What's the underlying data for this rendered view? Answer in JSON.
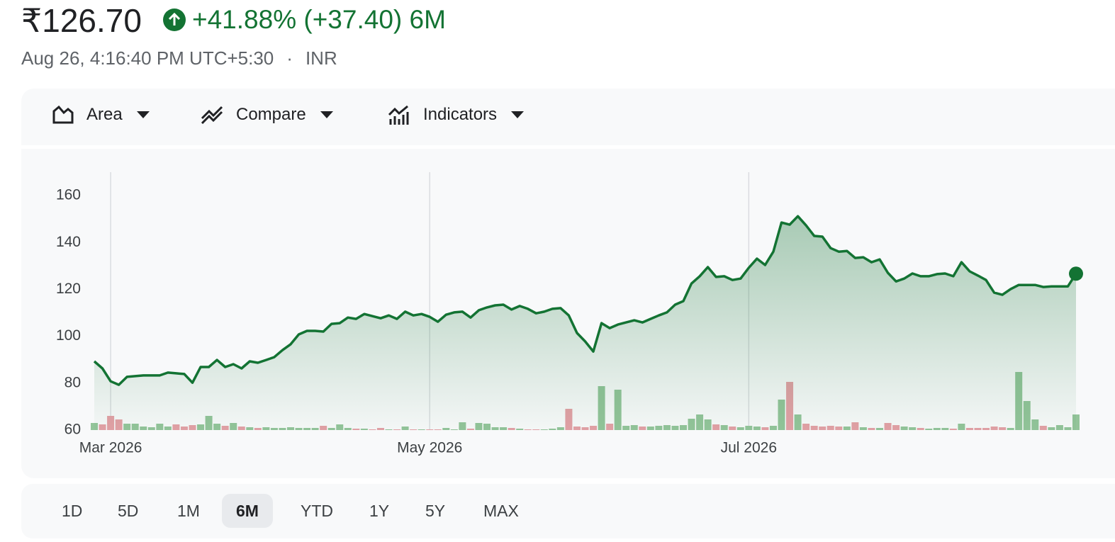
{
  "header": {
    "price": "₹126.70",
    "change": "+41.88% (+37.40) 6M",
    "timestamp": "Aug 26, 4:16:40 PM UTC+5:30",
    "separator": "·",
    "currency": "INR"
  },
  "toolbar": [
    "Area",
    "Compare",
    "Indicators"
  ],
  "ranges": [
    "1D",
    "5D",
    "1M",
    "6M",
    "YTD",
    "1Y",
    "5Y",
    "MAX"
  ],
  "selected_range": "6M",
  "chart_data": {
    "type": "area",
    "color": "#137333",
    "up_color": "#93c49a",
    "down_color": "#e3a0a6",
    "grid": "x",
    "ylim": [
      60,
      170
    ],
    "yticks": [
      60,
      80,
      100,
      120,
      140,
      160
    ],
    "categories": [
      null,
      null,
      "Mar 2026",
      null,
      null,
      null,
      null,
      null,
      null,
      null,
      null,
      null,
      null,
      null,
      null,
      null,
      null,
      null,
      null,
      null,
      null,
      null,
      null,
      null,
      null,
      null,
      null,
      null,
      null,
      null,
      null,
      null,
      null,
      null,
      null,
      null,
      null,
      null,
      null,
      null,
      null,
      "May 2026",
      null,
      null,
      null,
      null,
      null,
      null,
      null,
      null,
      null,
      null,
      null,
      null,
      null,
      null,
      null,
      null,
      null,
      null,
      null,
      null,
      null,
      null,
      null,
      null,
      null,
      null,
      null,
      null,
      null,
      null,
      null,
      null,
      null,
      null,
      null,
      null,
      null,
      null,
      "Jul 2026",
      null,
      null,
      null,
      null,
      null,
      null,
      null,
      null,
      null,
      null,
      null,
      null,
      null,
      null,
      null,
      null,
      null,
      null,
      null,
      null,
      null,
      null,
      null,
      null,
      null,
      null,
      null,
      null,
      null,
      null,
      null,
      null,
      null,
      null,
      null,
      null,
      null,
      null,
      null,
      null
    ],
    "values": [
      89.3,
      86.3,
      80.8,
      79.3,
      82.7,
      83.0,
      83.3,
      83.3,
      83.3,
      84.5,
      84.2,
      83.9,
      80.2,
      86.9,
      86.9,
      89.9,
      86.9,
      88.1,
      86.3,
      89.3,
      88.7,
      89.9,
      91.1,
      94.1,
      96.6,
      100.8,
      102.3,
      102.3,
      102.0,
      105.3,
      105.6,
      108.0,
      107.4,
      109.5,
      108.6,
      107.7,
      108.9,
      107.4,
      110.5,
      108.9,
      109.5,
      108.3,
      106.2,
      109.2,
      110.2,
      110.5,
      108.0,
      111.1,
      112.3,
      113.2,
      113.5,
      111.4,
      112.9,
      111.7,
      109.8,
      110.5,
      111.7,
      112.0,
      108.9,
      101.4,
      97.8,
      93.5,
      105.6,
      103.5,
      105.0,
      105.9,
      106.8,
      105.9,
      107.4,
      108.9,
      110.2,
      113.5,
      115.0,
      122.5,
      125.6,
      129.5,
      125.3,
      125.6,
      124.0,
      124.6,
      129.2,
      133.1,
      130.4,
      136.1,
      148.5,
      147.6,
      151.2,
      147.3,
      142.8,
      142.5,
      137.6,
      136.1,
      136.4,
      133.4,
      133.7,
      131.6,
      132.8,
      127.1,
      123.4,
      124.6,
      126.8,
      125.6,
      125.6,
      126.5,
      126.8,
      125.6,
      131.6,
      127.7,
      125.9,
      124.0,
      118.6,
      117.7,
      120.1,
      121.9,
      121.9,
      121.9,
      121.0,
      121.3,
      121.3,
      121.3,
      126.7
    ],
    "volumes": [
      10,
      8,
      20,
      15,
      9,
      9,
      5,
      4,
      9,
      5,
      8,
      5,
      7,
      8,
      20,
      9,
      6,
      10,
      5,
      4,
      3,
      4,
      3,
      3,
      4,
      3,
      3,
      3,
      6,
      3,
      8,
      3,
      2,
      2,
      1,
      3,
      1,
      1,
      5,
      1,
      1,
      1,
      1,
      3,
      1,
      11,
      2,
      10,
      9,
      4,
      4,
      3,
      2,
      1,
      1,
      1,
      2,
      4,
      30,
      5,
      4,
      6,
      62,
      9,
      57,
      6,
      7,
      5,
      5,
      6,
      7,
      6,
      7,
      16,
      22,
      15,
      8,
      7,
      5,
      4,
      6,
      5,
      4,
      6,
      43,
      68,
      22,
      9,
      6,
      5,
      6,
      5,
      5,
      11,
      4,
      3,
      3,
      10,
      7,
      5,
      4,
      3,
      2,
      3,
      3,
      2,
      9,
      3,
      3,
      3,
      5,
      4,
      3,
      82,
      41,
      15,
      6,
      4,
      7,
      4,
      22
    ]
  }
}
